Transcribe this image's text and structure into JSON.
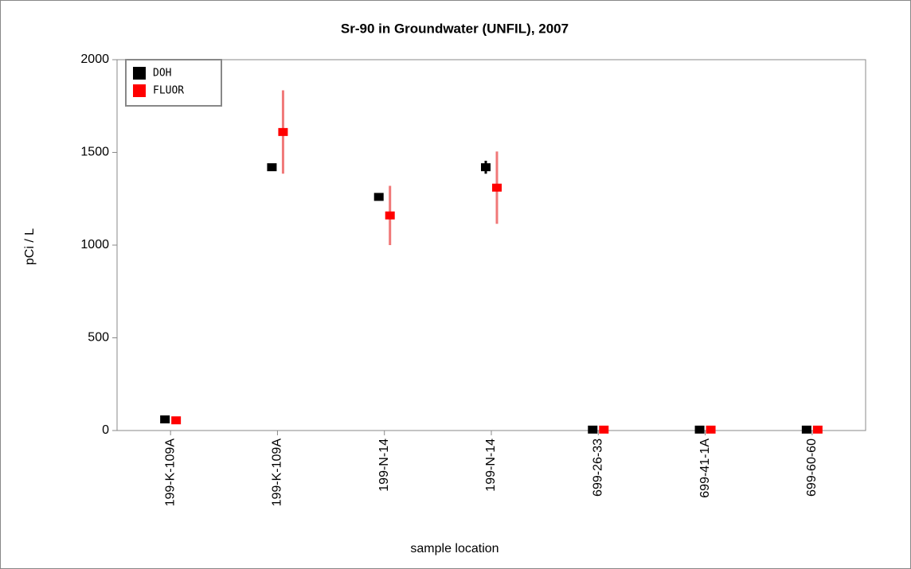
{
  "chart_data": {
    "type": "errorbar",
    "title": "Sr-90 in Groundwater (UNFIL), 2007",
    "xlabel": "sample location",
    "ylabel": "pCi / L",
    "categories": [
      "199-K-109A",
      "199-K-109A",
      "199-N-14",
      "199-N-14",
      "699-26-33",
      "699-41-1A",
      "699-60-60"
    ],
    "series": [
      {
        "name": "DOH",
        "color": "#000000",
        "error_color": "#000000",
        "values": [
          60,
          1420,
          1260,
          1420,
          5,
          5,
          5
        ],
        "errors": [
          10,
          15,
          12,
          35,
          3,
          3,
          3
        ]
      },
      {
        "name": "FLUOR",
        "color": "#ff0000",
        "error_color": "#f07878",
        "values": [
          55,
          1610,
          1160,
          1310,
          5,
          5,
          5
        ],
        "errors": [
          10,
          225,
          160,
          195,
          3,
          3,
          3
        ]
      }
    ],
    "ylim": [
      0,
      2000
    ],
    "yticks": [
      0,
      500,
      1000,
      1500,
      2000
    ],
    "grid": false,
    "legend": "upper left"
  }
}
